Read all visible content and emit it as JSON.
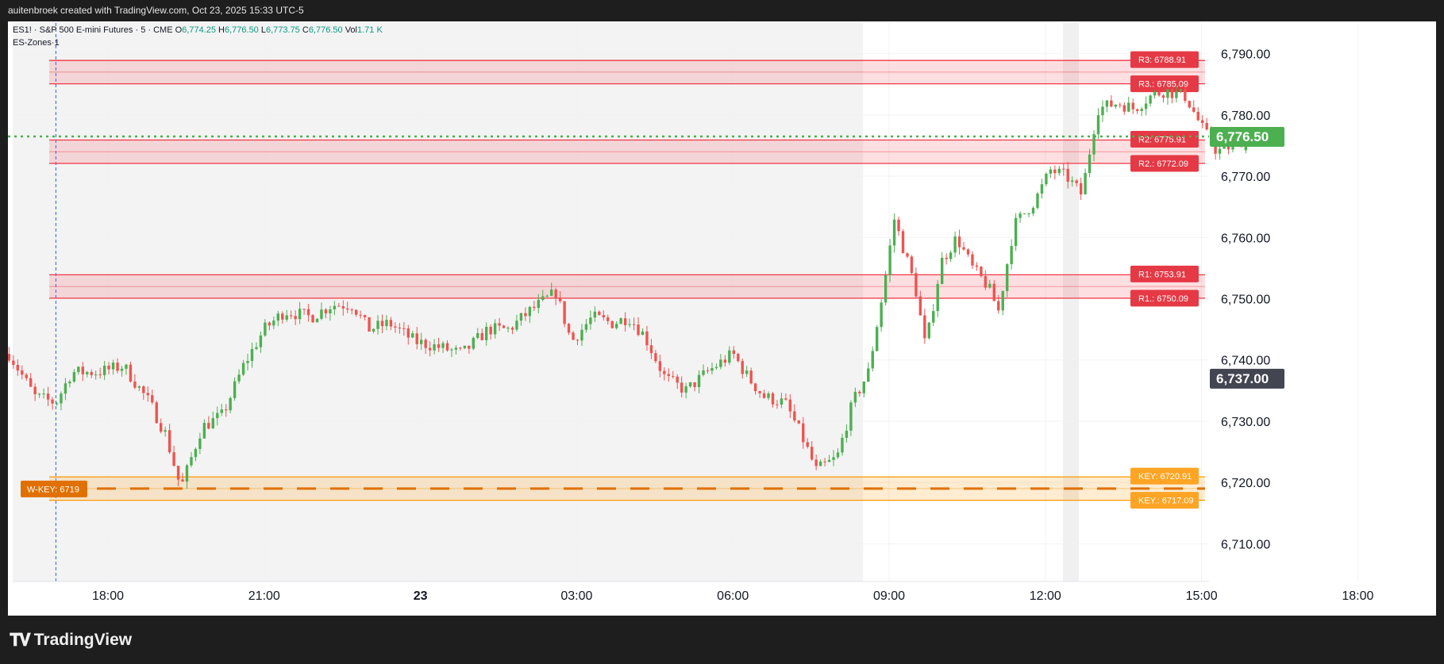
{
  "header": {
    "attribution": "auitenbroek created with TradingView.com, Oct 23, 2025 15:33 UTC-5"
  },
  "legend": {
    "symbol": "ES1! · S&P 500 E-mini Futures · 5 · CME",
    "o_label": "O",
    "o_value": "6,774.25",
    "h_label": "H",
    "h_value": "6,776.50",
    "l_label": "L",
    "l_value": "6,773.75",
    "c_label": "C",
    "c_value": "6,776.50",
    "vol_label": "Vol",
    "vol_value": "1.71 K",
    "indicator": "ES-Zones·1"
  },
  "brand": {
    "name": "TradingView"
  },
  "colors": {
    "up": "#26a69a",
    "upCandle": "#4caf50",
    "down": "#ef5350",
    "zoneRed": "#f23645",
    "zoneOrange": "#ff9800",
    "priceTag": "#4caf50",
    "crossTag": "#434651"
  },
  "chart_data": {
    "type": "candlestick",
    "instrument": "ES1!",
    "interval": "5",
    "ylim": [
      6705,
      6794
    ],
    "y_ticks": [
      6710,
      6720,
      6730,
      6740,
      6750,
      6760,
      6770,
      6780,
      6790
    ],
    "y_tick_labels": [
      "6,710.00",
      "6,720.00",
      "6,730.00",
      "6,740.00",
      "6,750.00",
      "6,760.00",
      "6,770.00",
      "6,780.00",
      "6,790.00"
    ],
    "x_ticks": [
      {
        "label": "18:00",
        "t": 18,
        "bold": false
      },
      {
        "label": "21:00",
        "t": 21,
        "bold": false
      },
      {
        "label": "23",
        "t": 24,
        "bold": true
      },
      {
        "label": "03:00",
        "t": 27,
        "bold": false
      },
      {
        "label": "06:00",
        "t": 30,
        "bold": false
      },
      {
        "label": "09:00",
        "t": 33,
        "bold": false
      },
      {
        "label": "12:00",
        "t": 36,
        "bold": false
      },
      {
        "label": "15:00",
        "t": 39,
        "bold": false
      },
      {
        "label": "18:00",
        "t": 42,
        "bold": false
      }
    ],
    "session_start_t": 17,
    "overnight_shade": [
      17,
      32.5
    ],
    "last_price": 6776.5,
    "last_price_label": "6,776.50",
    "crosshair_price_label": "6,737.00",
    "zones": [
      {
        "type": "resistance",
        "top": 6788.91,
        "bottom": 6785.09,
        "top_label": "R3: 6788.91",
        "bottom_label": "R3.: 6785.09"
      },
      {
        "type": "resistance",
        "top": 6775.91,
        "bottom": 6772.09,
        "top_label": "R2: 6775.91",
        "bottom_label": "R2.: 6772.09"
      },
      {
        "type": "resistance",
        "top": 6753.91,
        "bottom": 6750.09,
        "top_label": "R1: 6753.91",
        "bottom_label": "R1.: 6750.09"
      },
      {
        "type": "key",
        "top": 6720.91,
        "bottom": 6717.09,
        "top_label": "KEY: 6720.91",
        "bottom_label": "KEY.: 6717.09",
        "mid": 6719,
        "mid_label": "W-KEY: 6719"
      }
    ],
    "price_path": [
      [
        16.1,
        6741
      ],
      [
        16.6,
        6734
      ],
      [
        17.0,
        6733
      ],
      [
        17.3,
        6738
      ],
      [
        17.8,
        6738
      ],
      [
        18.3,
        6739
      ],
      [
        18.8,
        6733
      ],
      [
        19.1,
        6728
      ],
      [
        19.4,
        6719
      ],
      [
        19.8,
        6729
      ],
      [
        20.2,
        6731
      ],
      [
        20.6,
        6739
      ],
      [
        21.0,
        6745
      ],
      [
        21.4,
        6748
      ],
      [
        21.9,
        6747
      ],
      [
        22.3,
        6749
      ],
      [
        22.7,
        6749
      ],
      [
        23.0,
        6745
      ],
      [
        23.4,
        6746
      ],
      [
        23.9,
        6743
      ],
      [
        24.4,
        6742
      ],
      [
        24.8,
        6741
      ],
      [
        25.3,
        6745
      ],
      [
        25.7,
        6745
      ],
      [
        26.1,
        6748
      ],
      [
        26.6,
        6751
      ],
      [
        26.9,
        6743
      ],
      [
        27.3,
        6747
      ],
      [
        27.7,
        6746
      ],
      [
        28.0,
        6747
      ],
      [
        28.3,
        6744
      ],
      [
        28.7,
        6737
      ],
      [
        29.1,
        6735
      ],
      [
        29.5,
        6738
      ],
      [
        30.0,
        6741
      ],
      [
        30.3,
        6737
      ],
      [
        30.6,
        6734
      ],
      [
        31.0,
        6733
      ],
      [
        31.3,
        6728
      ],
      [
        31.6,
        6722
      ],
      [
        32.0,
        6724
      ],
      [
        32.3,
        6733
      ],
      [
        32.6,
        6738
      ],
      [
        32.9,
        6752
      ],
      [
        33.1,
        6763
      ],
      [
        33.5,
        6752
      ],
      [
        33.7,
        6742
      ],
      [
        34.0,
        6756
      ],
      [
        34.3,
        6760
      ],
      [
        34.6,
        6755
      ],
      [
        34.9,
        6752
      ],
      [
        35.1,
        6748
      ],
      [
        35.4,
        6762
      ],
      [
        35.8,
        6766
      ],
      [
        36.1,
        6771
      ],
      [
        36.4,
        6770
      ],
      [
        36.7,
        6767
      ],
      [
        37.0,
        6781
      ],
      [
        37.4,
        6782
      ],
      [
        37.7,
        6781
      ],
      [
        38.0,
        6783
      ],
      [
        38.3,
        6784
      ],
      [
        38.7,
        6783
      ],
      [
        39.0,
        6778
      ],
      [
        39.3,
        6774
      ],
      [
        39.6,
        6775
      ],
      [
        39.9,
        6776.5
      ]
    ]
  }
}
